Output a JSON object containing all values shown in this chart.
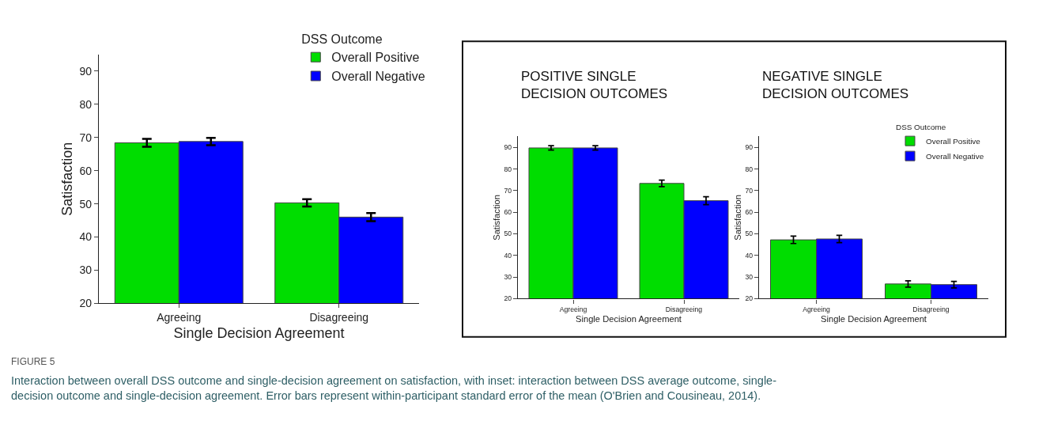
{
  "chart_data": [
    {
      "type": "bar",
      "xlabel": "Single Decision Agreement",
      "ylabel": "Satisfaction",
      "categories": [
        "Agreeing",
        "Disagreeing"
      ],
      "ylim": [
        20,
        95
      ],
      "yticks": [
        20,
        30,
        40,
        50,
        60,
        70,
        80,
        90
      ],
      "legend": "top right",
      "legend_title": "DSS Outcome",
      "series": [
        {
          "name": "Overall Positive",
          "color": "#00dd00",
          "values": [
            68.4,
            50.3
          ],
          "errors": [
            1.2,
            1.1
          ]
        },
        {
          "name": "Overall Negative",
          "color": "#0000ff",
          "values": [
            68.8,
            46.0
          ],
          "errors": [
            1.1,
            1.2
          ]
        }
      ],
      "annotations": [
        "FIGURE 5",
        "Interaction between overall DSS outcome and single-decision agreement on satisfaction, with inset: interaction between DSS average outcome, single-decision outcome and single-decision agreement. Error bars represent within-participant standard error of the mean (O'Brien and Cousineau, 2014)."
      ]
    },
    {
      "type": "bar",
      "title": "POSITIVE SINGLE DECISION OUTCOMES",
      "xlabel": "Single Decision Agreement",
      "ylabel": "Satisfaction",
      "categories": [
        "Agreeing",
        "Disagreeing"
      ],
      "ylim": [
        20,
        95
      ],
      "yticks": [
        20,
        30,
        40,
        50,
        60,
        70,
        80,
        90
      ],
      "series": [
        {
          "color": "#00dd00",
          "values": [
            89.7,
            73.3
          ],
          "errors": [
            1.0,
            1.5
          ]
        },
        {
          "color": "#0000ff",
          "values": [
            89.7,
            65.3
          ],
          "errors": [
            1.0,
            1.8
          ]
        }
      ]
    },
    {
      "type": "bar",
      "title": "NEGATIVE SINGLE DECISION OUTCOMES",
      "xlabel": "Single Decision Agreement",
      "ylabel": "Satisfaction",
      "categories": [
        "Agreeing",
        "Disagreeing"
      ],
      "ylim": [
        20,
        95
      ],
      "yticks": [
        20,
        30,
        40,
        50,
        60,
        70,
        80,
        90
      ],
      "legend": "top right",
      "legend_title": "DSS Outcome",
      "series": [
        {
          "name": "Overall Positive",
          "color": "#00dd00",
          "values": [
            47.2,
            26.8
          ],
          "errors": [
            1.7,
            1.5
          ]
        },
        {
          "name": "Overall Negative",
          "color": "#0000ff",
          "values": [
            47.6,
            26.5
          ],
          "errors": [
            1.7,
            1.5
          ]
        }
      ]
    }
  ]
}
